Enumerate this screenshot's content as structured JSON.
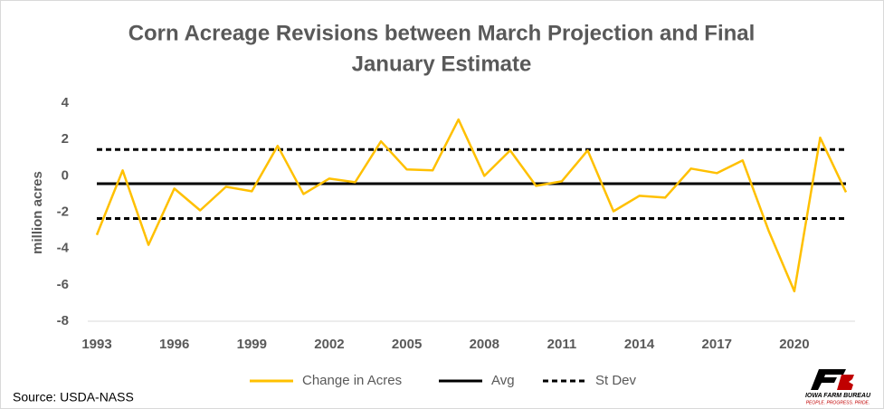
{
  "chart_data": {
    "type": "line",
    "title": [
      "Corn Acreage Revisions between March Projection and Final",
      "January Estimate"
    ],
    "y_label": "million acres",
    "source": "Source: USDA-NASS",
    "logo": {
      "name": "IOWA FARM BUREAU",
      "tagline": "PEOPLE. PROGRESS. PRIDE."
    },
    "x": [
      1993,
      1994,
      1995,
      1996,
      1997,
      1998,
      1999,
      2000,
      2001,
      2002,
      2003,
      2004,
      2005,
      2006,
      2007,
      2008,
      2009,
      2010,
      2011,
      2012,
      2013,
      2014,
      2015,
      2016,
      2017,
      2018,
      2019,
      2020,
      2021,
      2022
    ],
    "series": [
      {
        "name": "Change in Acres",
        "color": "#ffc000",
        "values": [
          -3.25,
          0.3,
          -3.8,
          -0.7,
          -1.9,
          -0.6,
          -0.85,
          1.65,
          -1.0,
          -0.15,
          -0.35,
          1.9,
          0.35,
          0.3,
          3.1,
          0.0,
          1.4,
          -0.55,
          -0.3,
          1.4,
          -1.95,
          -1.1,
          -1.2,
          0.4,
          0.15,
          0.85,
          -3.0,
          -6.35,
          2.1,
          -0.9
        ]
      }
    ],
    "reference_lines": [
      {
        "name": "Avg",
        "color": "#000000",
        "dashed": false,
        "values": [
          -0.43
        ]
      },
      {
        "name": "St Dev",
        "color": "#000000",
        "dashed": true,
        "values": [
          1.45,
          -2.35
        ]
      }
    ],
    "xlim": [
      1993,
      2022
    ],
    "xticks": [
      1993,
      1996,
      1999,
      2002,
      2005,
      2008,
      2011,
      2014,
      2017,
      2020
    ],
    "ylim": [
      -8,
      4
    ],
    "yticks": [
      4,
      2,
      0,
      -2,
      -4,
      -6,
      -8
    ],
    "grid": false,
    "legend": "bottom"
  }
}
